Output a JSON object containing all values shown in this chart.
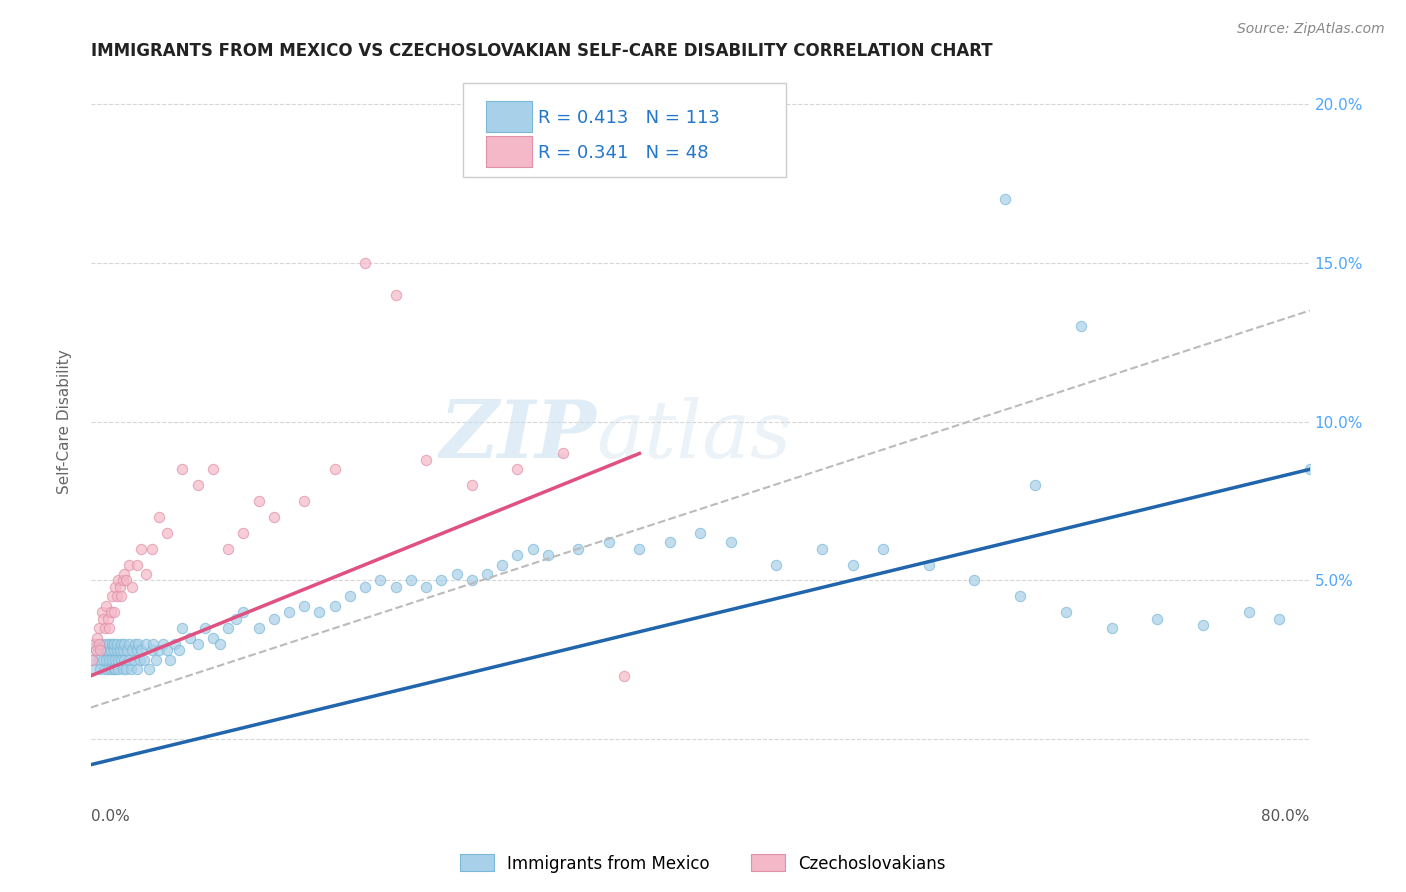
{
  "title": "IMMIGRANTS FROM MEXICO VS CZECHOSLOVAKIAN SELF-CARE DISABILITY CORRELATION CHART",
  "source": "Source: ZipAtlas.com",
  "ylabel": "Self-Care Disability",
  "xlim": [
    0.0,
    0.8
  ],
  "ylim": [
    -0.01,
    0.21
  ],
  "yticks": [
    0.0,
    0.05,
    0.1,
    0.15,
    0.2
  ],
  "yticklabels_left": [
    "",
    "",
    "",
    "",
    ""
  ],
  "yticklabels_right": [
    "",
    "5.0%",
    "10.0%",
    "15.0%",
    "20.0%"
  ],
  "xtick_left_label": "0.0%",
  "xtick_right_label": "80.0%",
  "blue_color": "#a8d0e8",
  "pink_color": "#f4b8c8",
  "blue_line_color": "#2166ac",
  "pink_line_color": "#e05080",
  "dashed_line_color": "#bbbbbb",
  "right_tick_color": "#4da6ff",
  "legend_label_blue": "Immigrants from Mexico",
  "legend_label_pink": "Czechoslovakians",
  "watermark_zip": "ZIP",
  "watermark_atlas": "atlas",
  "background_color": "#ffffff",
  "grid_color": "#cccccc",
  "blue_trend_x": [
    0.0,
    0.8
  ],
  "blue_trend_y": [
    -0.008,
    0.085
  ],
  "pink_trend_x": [
    0.0,
    0.36
  ],
  "pink_trend_y": [
    0.02,
    0.09
  ],
  "dash_trend_x": [
    0.0,
    0.8
  ],
  "dash_trend_y": [
    0.01,
    0.135
  ],
  "blue_x": [
    0.001,
    0.002,
    0.003,
    0.004,
    0.005,
    0.006,
    0.006,
    0.007,
    0.008,
    0.009,
    0.01,
    0.01,
    0.01,
    0.011,
    0.011,
    0.012,
    0.012,
    0.013,
    0.013,
    0.014,
    0.014,
    0.015,
    0.015,
    0.015,
    0.016,
    0.016,
    0.017,
    0.017,
    0.018,
    0.018,
    0.019,
    0.02,
    0.02,
    0.021,
    0.021,
    0.022,
    0.022,
    0.023,
    0.024,
    0.025,
    0.025,
    0.026,
    0.027,
    0.028,
    0.029,
    0.03,
    0.03,
    0.031,
    0.032,
    0.033,
    0.035,
    0.036,
    0.038,
    0.04,
    0.041,
    0.043,
    0.045,
    0.047,
    0.05,
    0.052,
    0.055,
    0.058,
    0.06,
    0.065,
    0.07,
    0.075,
    0.08,
    0.085,
    0.09,
    0.095,
    0.1,
    0.11,
    0.12,
    0.13,
    0.14,
    0.15,
    0.16,
    0.17,
    0.18,
    0.19,
    0.2,
    0.21,
    0.22,
    0.23,
    0.24,
    0.25,
    0.26,
    0.27,
    0.28,
    0.29,
    0.3,
    0.32,
    0.34,
    0.36,
    0.38,
    0.4,
    0.42,
    0.45,
    0.48,
    0.5,
    0.52,
    0.55,
    0.58,
    0.61,
    0.64,
    0.67,
    0.7,
    0.73,
    0.76,
    0.78,
    0.8,
    0.6,
    0.62,
    0.65
  ],
  "blue_y": [
    0.025,
    0.022,
    0.028,
    0.03,
    0.025,
    0.022,
    0.028,
    0.03,
    0.025,
    0.022,
    0.028,
    0.03,
    0.025,
    0.022,
    0.028,
    0.03,
    0.025,
    0.022,
    0.028,
    0.03,
    0.025,
    0.022,
    0.028,
    0.03,
    0.025,
    0.022,
    0.028,
    0.03,
    0.025,
    0.022,
    0.028,
    0.025,
    0.03,
    0.022,
    0.028,
    0.03,
    0.025,
    0.022,
    0.028,
    0.03,
    0.025,
    0.022,
    0.028,
    0.025,
    0.03,
    0.022,
    0.028,
    0.03,
    0.025,
    0.028,
    0.025,
    0.03,
    0.022,
    0.028,
    0.03,
    0.025,
    0.028,
    0.03,
    0.028,
    0.025,
    0.03,
    0.028,
    0.035,
    0.032,
    0.03,
    0.035,
    0.032,
    0.03,
    0.035,
    0.038,
    0.04,
    0.035,
    0.038,
    0.04,
    0.042,
    0.04,
    0.042,
    0.045,
    0.048,
    0.05,
    0.048,
    0.05,
    0.048,
    0.05,
    0.052,
    0.05,
    0.052,
    0.055,
    0.058,
    0.06,
    0.058,
    0.06,
    0.062,
    0.06,
    0.062,
    0.065,
    0.062,
    0.055,
    0.06,
    0.055,
    0.06,
    0.055,
    0.05,
    0.045,
    0.04,
    0.035,
    0.038,
    0.036,
    0.04,
    0.038,
    0.085,
    0.17,
    0.08,
    0.13
  ],
  "pink_x": [
    0.001,
    0.002,
    0.003,
    0.004,
    0.005,
    0.005,
    0.006,
    0.007,
    0.008,
    0.009,
    0.01,
    0.011,
    0.012,
    0.013,
    0.014,
    0.015,
    0.016,
    0.017,
    0.018,
    0.019,
    0.02,
    0.021,
    0.022,
    0.023,
    0.025,
    0.027,
    0.03,
    0.033,
    0.036,
    0.04,
    0.045,
    0.05,
    0.06,
    0.07,
    0.08,
    0.09,
    0.1,
    0.11,
    0.12,
    0.14,
    0.16,
    0.18,
    0.2,
    0.22,
    0.25,
    0.28,
    0.31,
    0.35
  ],
  "pink_y": [
    0.025,
    0.03,
    0.028,
    0.032,
    0.03,
    0.035,
    0.028,
    0.04,
    0.038,
    0.035,
    0.042,
    0.038,
    0.035,
    0.04,
    0.045,
    0.04,
    0.048,
    0.045,
    0.05,
    0.048,
    0.045,
    0.05,
    0.052,
    0.05,
    0.055,
    0.048,
    0.055,
    0.06,
    0.052,
    0.06,
    0.07,
    0.065,
    0.085,
    0.08,
    0.085,
    0.06,
    0.065,
    0.075,
    0.07,
    0.075,
    0.085,
    0.15,
    0.14,
    0.088,
    0.08,
    0.085,
    0.09,
    0.02
  ]
}
